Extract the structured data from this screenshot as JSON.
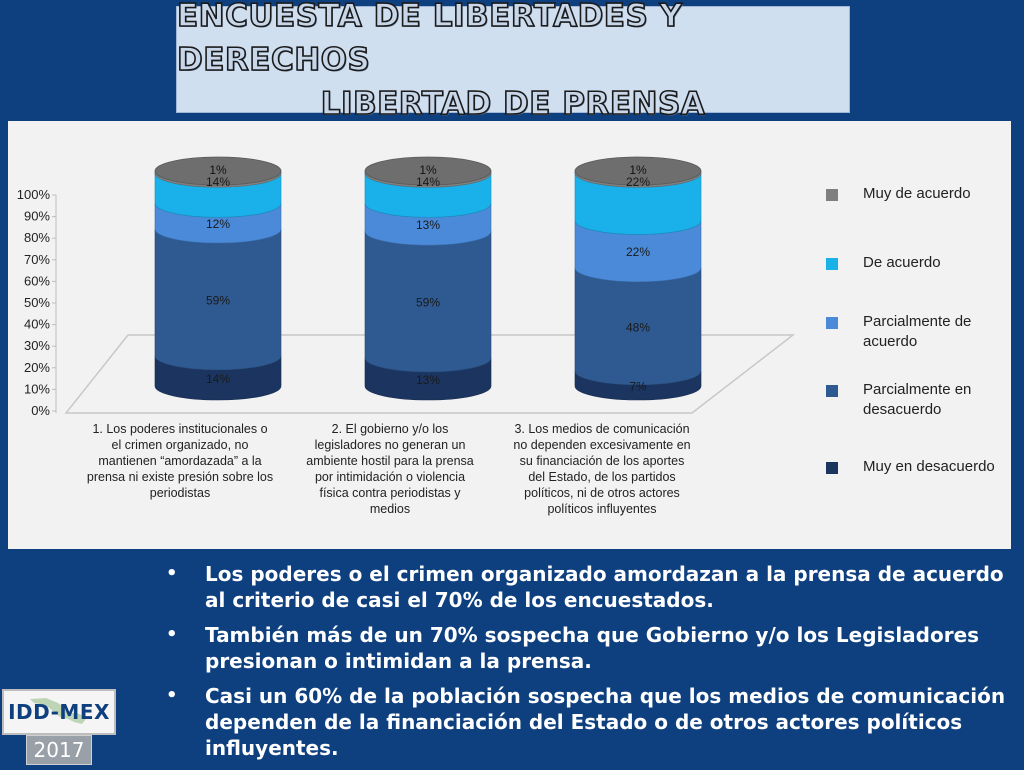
{
  "slide": {
    "title_line1": "ENCUESTA DE LIBERTADES Y DERECHOS",
    "title_line2": "LIBERTAD DE PRENSA"
  },
  "chart_data": {
    "type": "bar",
    "stacked": true,
    "three_d": true,
    "categories": [
      "1. Los poderes institucionales o el crimen organizado, no mantienen “amordazada” a la prensa ni existe presión sobre los periodistas",
      "2. El gobierno y/o los legisladores no generan un ambiente hostil para la prensa por intimidación o violencia física contra periodistas y medios",
      "3. Los medios de comunicación no dependen excesivamente en su financiación de los aportes del Estado, de los partidos políticos, ni de otros actores políticos influyentes"
    ],
    "category_lines": [
      [
        "1. Los poderes institucionales o",
        "el crimen organizado, no",
        "mantienen “amordazada” a la",
        "prensa ni existe presión sobre los",
        "periodistas"
      ],
      [
        "2. El gobierno y/o los",
        "legisladores no generan un",
        "ambiente hostil para la prensa",
        "por intimidación o violencia",
        "física contra periodistas y",
        "medios"
      ],
      [
        "3. Los medios de comunicación",
        "no dependen excesivamente en",
        "su financiación de los aportes",
        "del Estado, de los partidos",
        "políticos, ni de otros actores",
        "políticos influyentes"
      ]
    ],
    "series": [
      {
        "name": "Muy en desacuerdo",
        "values": [
          14,
          13,
          7
        ],
        "labels": [
          "14%",
          "13%",
          "7%"
        ],
        "color": "#1b3560"
      },
      {
        "name": "Parcialmente en desacuerdo",
        "values": [
          59,
          59,
          48
        ],
        "labels": [
          "59%",
          "59%",
          "48%"
        ],
        "color": "#2f5a91"
      },
      {
        "name": "Parcialmente de acuerdo",
        "values": [
          12,
          13,
          22
        ],
        "labels": [
          "12%",
          "13%",
          "22%"
        ],
        "color": "#4a8ad8"
      },
      {
        "name": "De acuerdo",
        "values": [
          14,
          14,
          22
        ],
        "labels": [
          "14%",
          "14%",
          "22%"
        ],
        "color": "#1ab0ea"
      },
      {
        "name": "Muy de acuerdo",
        "values": [
          1,
          1,
          1
        ],
        "labels": [
          "1%",
          "1%",
          "1%"
        ],
        "color": "#808080"
      }
    ],
    "legend_order": [
      "Muy de acuerdo",
      "De acuerdo",
      "Parcialmente de acuerdo",
      "Parcialmente en desacuerdo",
      "Muy en desacuerdo"
    ],
    "yticks": [
      "0%",
      "10%",
      "20%",
      "30%",
      "40%",
      "50%",
      "60%",
      "70%",
      "80%",
      "90%",
      "100%"
    ],
    "ylim": [
      0,
      100
    ],
    "legend_position": "right",
    "grid": false
  },
  "bullets": [
    "Los poderes o el crimen organizado amordazan a la prensa de acuerdo al criterio de casi el 70% de los encuestados.",
    "También más de un 70% sospecha que Gobierno y/o los Legisladores presionan o intimidan a la prensa.",
    "Casi un 60% de la población sospecha que los medios de comunicación dependen de la financiación del Estado o de otros actores políticos influyentes."
  ],
  "bullet_glyph": "•",
  "logo": {
    "name": "IDD-MEX",
    "year": "2017"
  }
}
